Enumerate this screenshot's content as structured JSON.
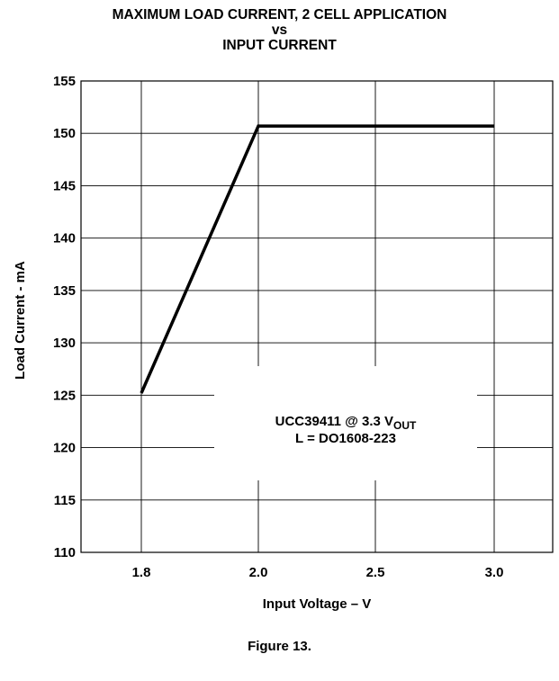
{
  "chart_data": {
    "type": "line",
    "title_lines": [
      "MAXIMUM LOAD CURRENT, 2 CELL APPLICATION",
      "vs",
      "INPUT CURRENT"
    ],
    "xlabel": "Input Voltage – V",
    "ylabel": "Load Current - mA",
    "x_ticks": [
      "1.8",
      "2.0",
      "2.5",
      "3.0"
    ],
    "y_ticks": [
      110,
      115,
      120,
      125,
      130,
      135,
      140,
      145,
      150,
      155
    ],
    "ylim": [
      110,
      155
    ],
    "grid": true,
    "series": [
      {
        "x": [
          1.8,
          2.0,
          3.0
        ],
        "y": [
          125.2,
          150.7,
          150.7
        ]
      }
    ],
    "annotation": {
      "line1_main": "UCC39411  @ 3.3 V",
      "line1_sub": "OUT",
      "line2": "L = DO1608-223"
    }
  },
  "caption": "Figure 13."
}
